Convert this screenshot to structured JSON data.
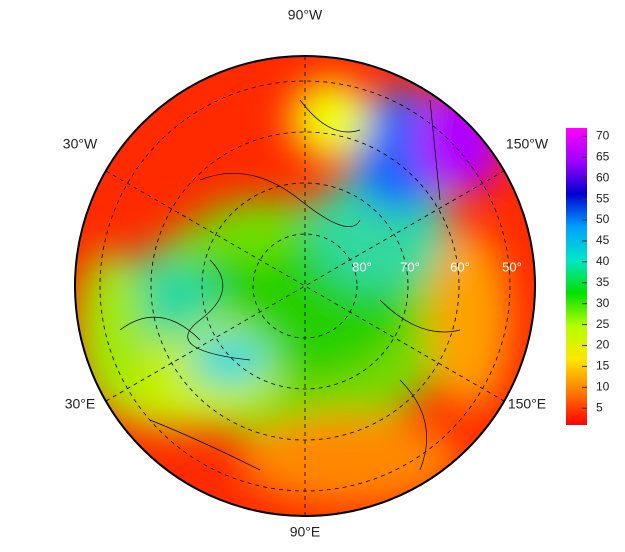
{
  "map": {
    "longitude_labels": [
      "90°W",
      "150°W",
      "150°E",
      "90°E",
      "30°E",
      "30°W"
    ],
    "latitude_labels": [
      "80°",
      "70°",
      "60°",
      "50°"
    ],
    "colorbar": {
      "range": [
        1,
        72
      ],
      "ticks": [
        5,
        10,
        15,
        20,
        25,
        30,
        35,
        40,
        45,
        50,
        55,
        60,
        65,
        70
      ],
      "colors": [
        "#ff0000",
        "#ff7a00",
        "#ffe600",
        "#b4ff00",
        "#00e000",
        "#00e6c8",
        "#00a0ff",
        "#0000d0",
        "#a000ff",
        "#ff00ff"
      ]
    }
  }
}
